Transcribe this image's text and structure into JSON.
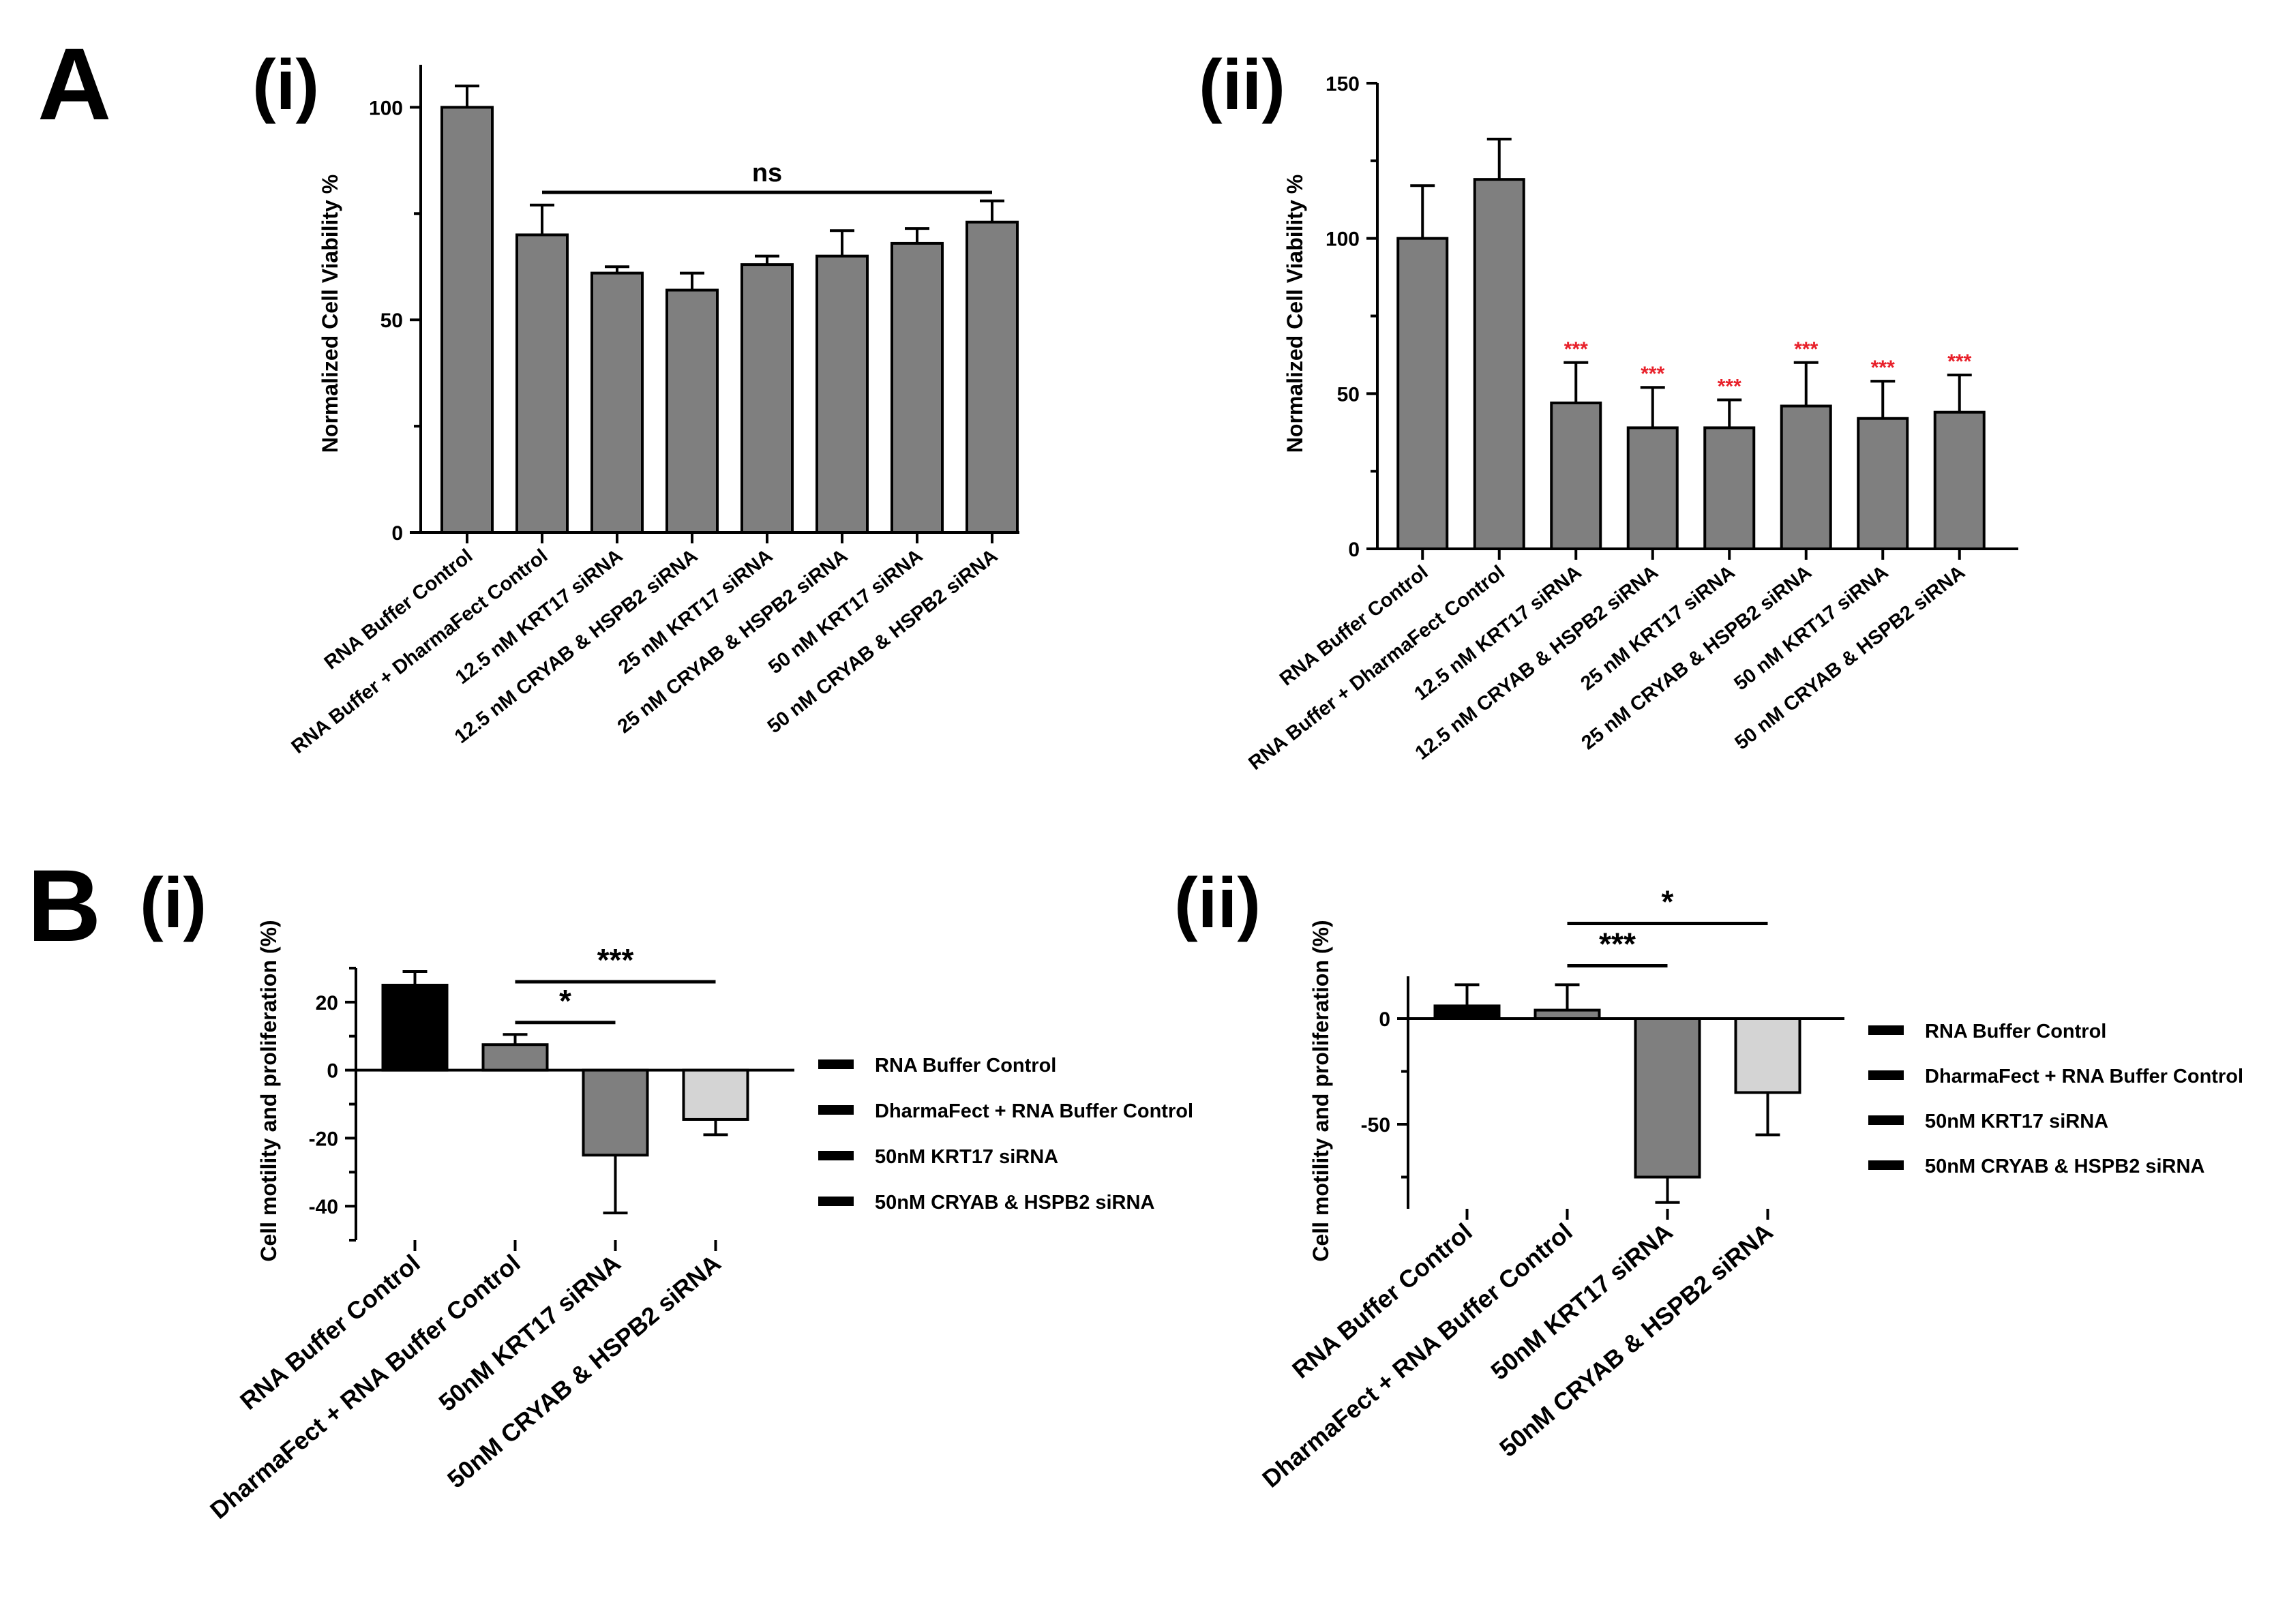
{
  "colors": {
    "bar_gray": "#7f7f7f",
    "bar_black": "#000000",
    "bar_light": "#d4d4d4",
    "axis": "#000000",
    "sig_red": "#e8202a"
  },
  "chart_data": [
    {
      "id": "A-i",
      "panel_letter": "A",
      "panel_sub": "(i)",
      "type": "bar",
      "ylabel": "Normalized Cell Viability %",
      "ylim": [
        0,
        110
      ],
      "yticks": [
        0,
        50,
        100
      ],
      "yticks_display": [
        "0",
        "50",
        "100"
      ],
      "categories": [
        "RNA Buffer Control",
        "RNA Buffer + DharmaFect Control",
        "12.5 nM KRT17 siRNA",
        "12.5 nM CRYAB & HSPB2 siRNA",
        "25 nM KRT17 siRNA",
        "25 nM CRYAB & HSPB2 siRNA",
        "50 nM KRT17 siRNA",
        "50 nM CRYAB & HSPB2 siRNA"
      ],
      "values": [
        100,
        70,
        61,
        57,
        63,
        65,
        68,
        73
      ],
      "errors": [
        5,
        7,
        1.5,
        4,
        2,
        6,
        3.5,
        5
      ],
      "bar_colors": [
        "#7f7f7f",
        "#7f7f7f",
        "#7f7f7f",
        "#7f7f7f",
        "#7f7f7f",
        "#7f7f7f",
        "#7f7f7f",
        "#7f7f7f"
      ],
      "brackets": [
        {
          "from": 1,
          "to": 7,
          "label": "ns",
          "y": 80
        }
      ],
      "bar_stars": []
    },
    {
      "id": "A-ii",
      "panel_sub": "(ii)",
      "type": "bar",
      "ylabel": "Normalized Cell Viability %",
      "ylim": [
        0,
        150
      ],
      "yticks": [
        0,
        50,
        100,
        150
      ],
      "yticks_display": [
        "0",
        "50",
        "100",
        "150"
      ],
      "categories": [
        "RNA Buffer Control",
        "RNA Buffer + DharmaFect Control",
        "12.5 nM KRT17 siRNA",
        "12.5 nM CRYAB & HSPB2 siRNA",
        "25 nM KRT17 siRNA",
        "25 nM CRYAB & HSPB2 siRNA",
        "50 nM KRT17 siRNA",
        "50 nM CRYAB & HSPB2 siRNA"
      ],
      "values": [
        100,
        119,
        47,
        39,
        39,
        46,
        42,
        44
      ],
      "errors": [
        17,
        13,
        13,
        13,
        9,
        14,
        12,
        12
      ],
      "bar_colors": [
        "#7f7f7f",
        "#7f7f7f",
        "#7f7f7f",
        "#7f7f7f",
        "#7f7f7f",
        "#7f7f7f",
        "#7f7f7f",
        "#7f7f7f"
      ],
      "brackets": [],
      "bar_stars": [
        "",
        "",
        "***",
        "***",
        "***",
        "***",
        "***",
        "***"
      ]
    },
    {
      "id": "B-i",
      "panel_letter": "B",
      "panel_sub": "(i)",
      "type": "bar",
      "ylabel": "Cell motility and proliferation (%)",
      "ylim": [
        -50,
        30
      ],
      "yticks": [
        -40,
        -20,
        0,
        20
      ],
      "yticks_display": [
        "-40",
        "-20",
        "0",
        "20"
      ],
      "categories": [
        "RNA Buffer Control",
        "DharmaFect + RNA Buffer Control",
        "50nM KRT17 siRNA",
        "50nM CRYAB & HSPB2 siRNA"
      ],
      "values": [
        25,
        7.5,
        -25,
        -14.5
      ],
      "errors": [
        4,
        3,
        17,
        4.5
      ],
      "bar_colors": [
        "#000000",
        "#7f7f7f",
        "#7f7f7f",
        "#d4d4d4"
      ],
      "brackets": [
        {
          "from": 1,
          "to": 2,
          "label": "*",
          "y": 14
        },
        {
          "from": 1,
          "to": 3,
          "label": "***",
          "y": 26
        }
      ],
      "bar_stars": [],
      "legend": [
        "RNA Buffer Control",
        "DharmaFect + RNA Buffer Control",
        "50nM KRT17 siRNA",
        "50nM CRYAB & HSPB2 siRNA"
      ]
    },
    {
      "id": "B-ii",
      "panel_sub": "(ii)",
      "type": "bar",
      "ylabel": "Cell motility and proliferation (%)",
      "ylim": [
        -90,
        20
      ],
      "yticks": [
        -50,
        0
      ],
      "yticks_display": [
        "-50",
        "0"
      ],
      "categories": [
        "RNA Buffer Control",
        "DharmaFect + RNA Buffer Control",
        "50nM KRT17 siRNA",
        "50nM CRYAB & HSPB2 siRNA"
      ],
      "values": [
        6,
        4,
        -75,
        -35
      ],
      "errors": [
        10,
        12,
        12,
        20
      ],
      "bar_colors": [
        "#000000",
        "#7f7f7f",
        "#7f7f7f",
        "#d4d4d4"
      ],
      "brackets": [
        {
          "from": 1,
          "to": 2,
          "label": "***",
          "y": 25
        },
        {
          "from": 1,
          "to": 3,
          "label": "*",
          "y": 45
        }
      ],
      "bar_stars": [],
      "legend": [
        "RNA Buffer Control",
        "DharmaFect + RNA Buffer Control",
        "50nM KRT17 siRNA",
        "50nM CRYAB & HSPB2 siRNA"
      ]
    }
  ]
}
